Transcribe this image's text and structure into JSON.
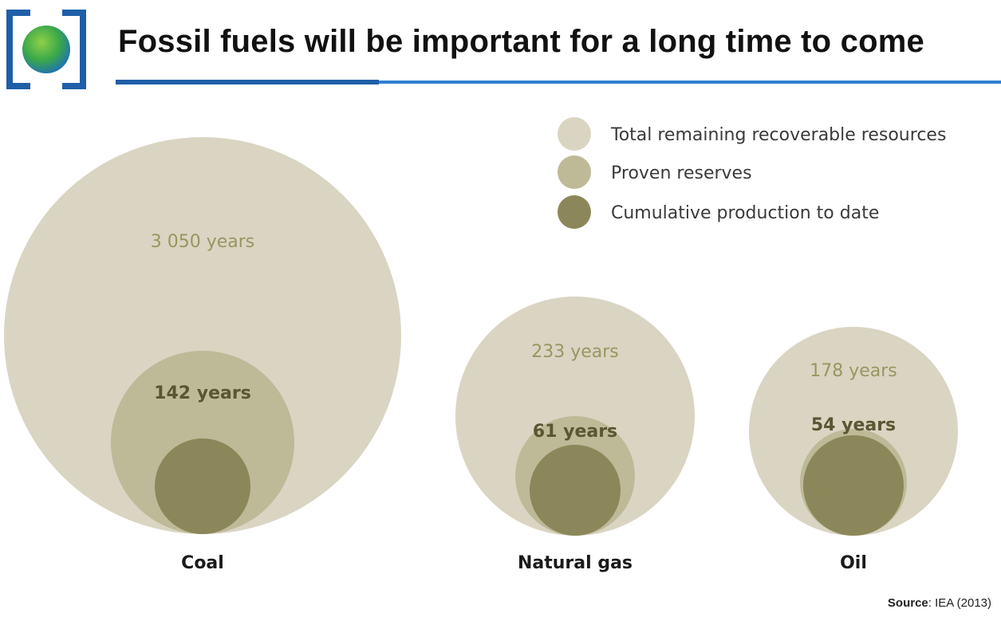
{
  "header": {
    "title": "Fossil fuels will be important for a long time to come"
  },
  "source": {
    "label": "Source",
    "value": ": IEA (2013)"
  },
  "colors": {
    "total": "#d9d5c2",
    "proven": "#beb997",
    "cumulative": "#8b875a",
    "label_light": "#9a9560",
    "label_dark": "#5a5632",
    "accent_blue": "#1f5fa8",
    "logo_green": "#3aa84a"
  },
  "chart_data": {
    "type": "nested-bubble",
    "title": "",
    "legend_position": "top-right",
    "legend": [
      {
        "key": "total",
        "label": "Total remaining recoverable resources"
      },
      {
        "key": "proven",
        "label": "Proven reserves"
      },
      {
        "key": "cumulative",
        "label": "Cumulative production to date"
      }
    ],
    "categories": [
      "Coal",
      "Natural gas",
      "Oil"
    ],
    "series": [
      {
        "category": "Coal",
        "total_label": "3 050 years",
        "proven_label": "142 years"
      },
      {
        "category": "Natural gas",
        "total_label": "233 years",
        "proven_label": "61 years"
      },
      {
        "category": "Oil",
        "total_label": "178 years",
        "proven_label": "54 years"
      }
    ]
  }
}
